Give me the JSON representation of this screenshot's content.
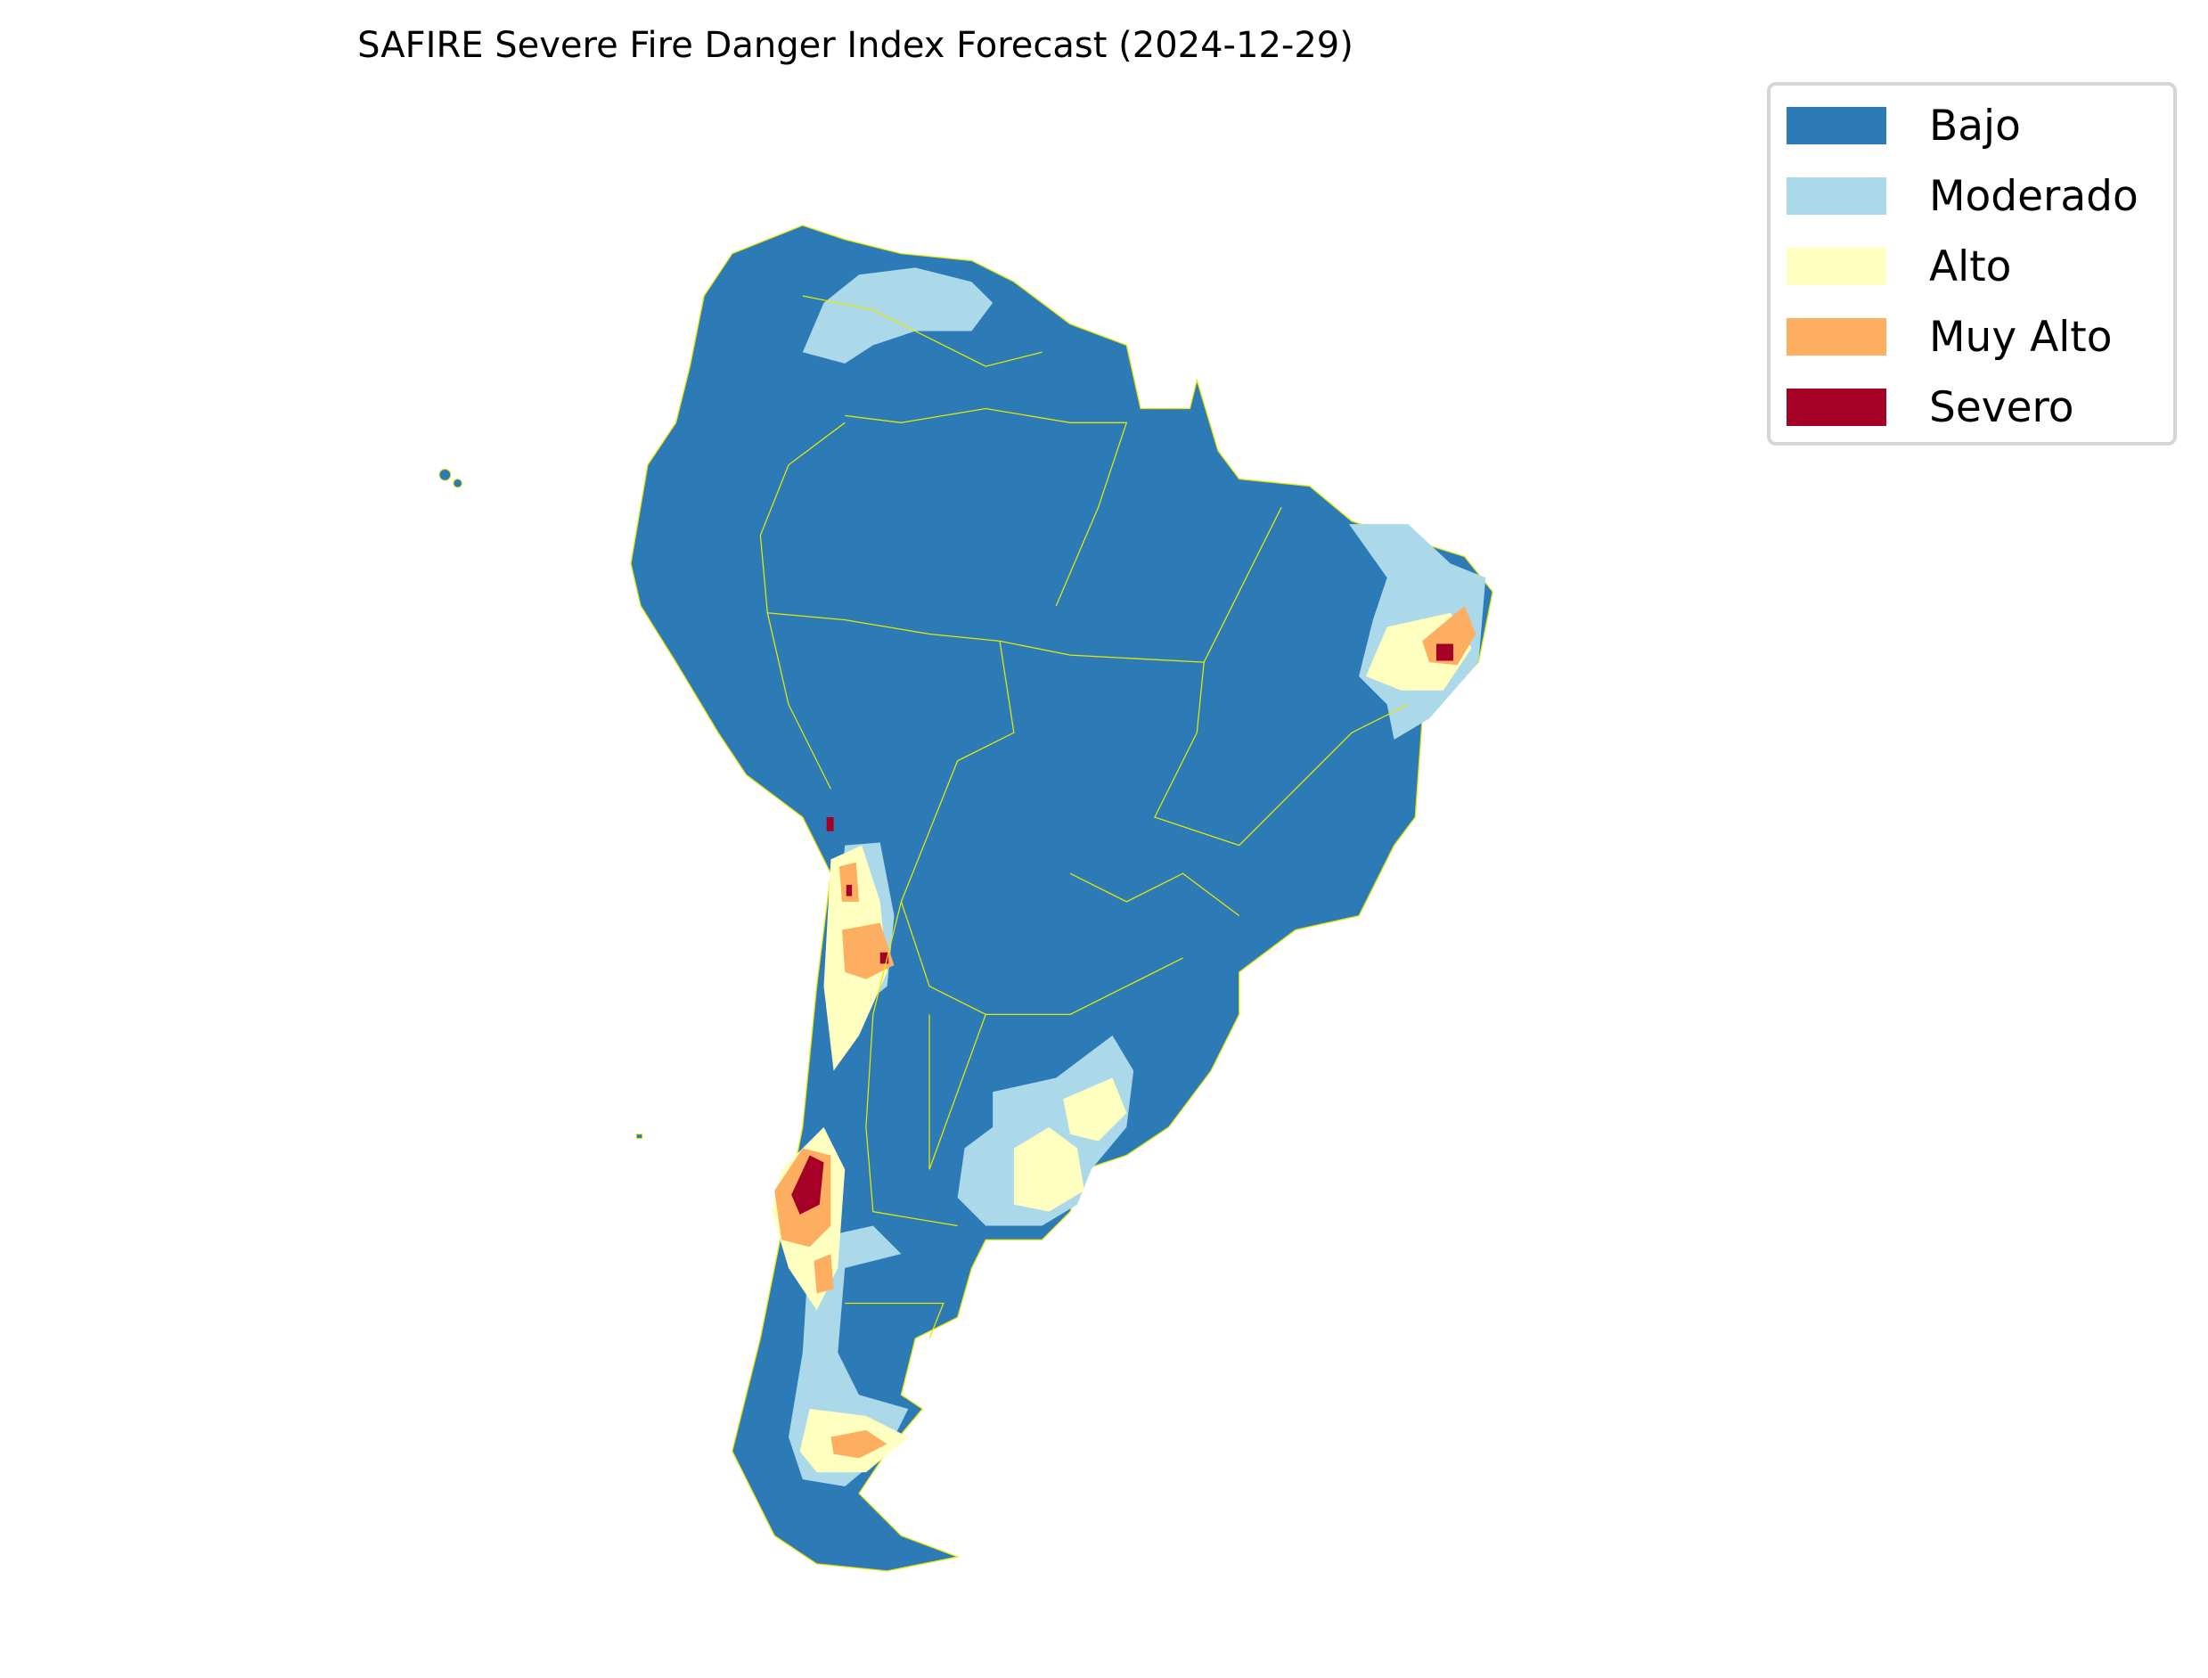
{
  "title": "SAFIRE Severe Fire Danger Index Forecast (2024-12-29)",
  "legend": {
    "items": [
      {
        "label": "Bajo",
        "color": "#2c7bb6"
      },
      {
        "label": "Moderado",
        "color": "#abd9e9"
      },
      {
        "label": "Alto",
        "color": "#ffffbf"
      },
      {
        "label": "Muy Alto",
        "color": "#fdae61"
      },
      {
        "label": "Severo",
        "color": "#a50026"
      }
    ]
  },
  "border_color": "#e8e800"
}
